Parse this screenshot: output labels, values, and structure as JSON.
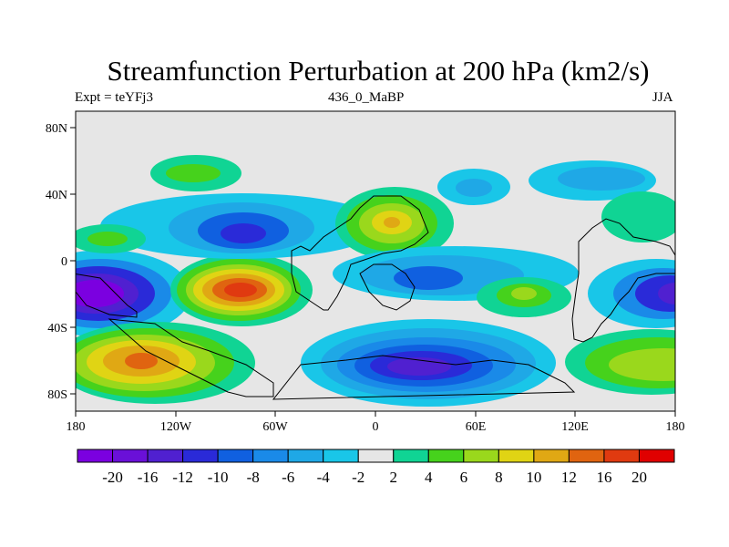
{
  "title": "Streamfunction Perturbation at 200 hPa (km2/s)",
  "subtitle_left": "Expt = teYFj3",
  "subtitle_center": "436_0_MaBP",
  "subtitle_right": "JJA",
  "map": {
    "lon_range": [
      -180,
      180
    ],
    "lat_range": [
      -90,
      90
    ],
    "x_ticks": [
      "180",
      "120W",
      "60W",
      "0",
      "60E",
      "120E",
      "180"
    ],
    "y_ticks": [
      "80N",
      "40N",
      "0",
      "40S",
      "80S"
    ],
    "background_color": "#e6e6e6"
  },
  "colorbar": {
    "labels": [
      "-20",
      "-16",
      "-12",
      "-10",
      "-8",
      "-6",
      "-4",
      "-2",
      "2",
      "4",
      "6",
      "8",
      "10",
      "12",
      "16",
      "20"
    ],
    "colors": [
      "#7b00e0",
      "#6a10d8",
      "#5020d0",
      "#2a2ad8",
      "#1060e0",
      "#1a8ae8",
      "#1fa8e6",
      "#19c6e8",
      "#e6e6e6",
      "#10d494",
      "#46d21c",
      "#9ad81c",
      "#e0d414",
      "#e0a814",
      "#e06410",
      "#e03a10",
      "#e00000"
    ]
  }
}
